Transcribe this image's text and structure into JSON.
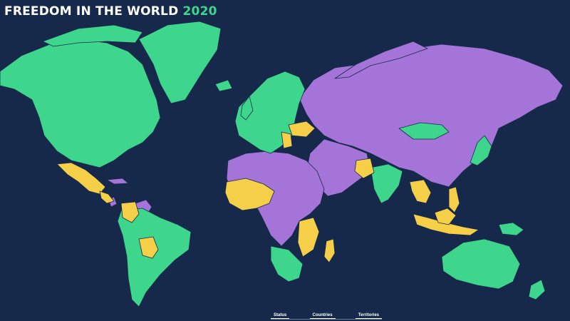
{
  "header": {
    "title": "FREEDOM IN THE WORLD",
    "year": "2020"
  },
  "legend_colors": {
    "free": "#3dd68c",
    "partly_free": "#f5cf47",
    "not_free": "#a474d8",
    "ocean": "#16294a"
  },
  "tabs": [
    {
      "label": "Status"
    },
    {
      "label": "Countries"
    },
    {
      "label": "Territories"
    }
  ]
}
